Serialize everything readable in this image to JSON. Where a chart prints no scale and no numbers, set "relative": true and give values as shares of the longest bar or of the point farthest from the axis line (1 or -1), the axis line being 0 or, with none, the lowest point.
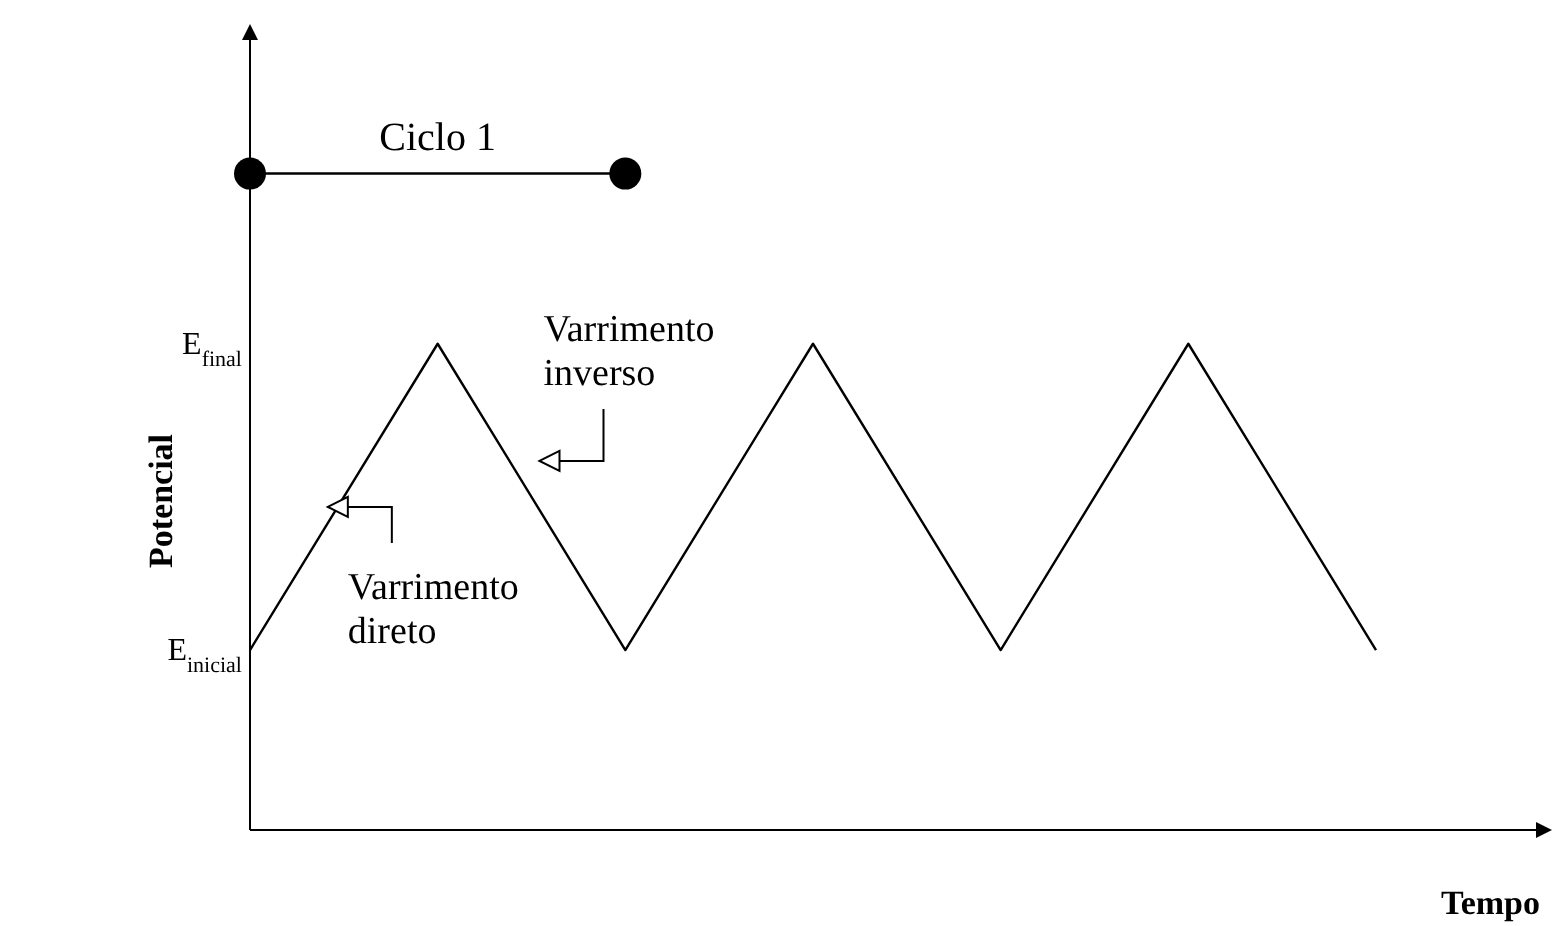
{
  "chart_data": {
    "type": "line",
    "relative": true,
    "xlabel": "Tempo",
    "ylabel": "Potencial",
    "categories": [
      null,
      null,
      null,
      null,
      null,
      null,
      null
    ],
    "series": [
      {
        "color": "#000000",
        "values": [
          0.37,
          1,
          0.37,
          1,
          0.37,
          1,
          0.37
        ]
      }
    ],
    "grid": false,
    "marker": "none",
    "line_style": "solid",
    "annotations": [
      "Ciclo 1",
      "Varrimento inverso",
      "Varrimento direto",
      "E$_{final}$",
      "E$_{inicial}$"
    ]
  }
}
